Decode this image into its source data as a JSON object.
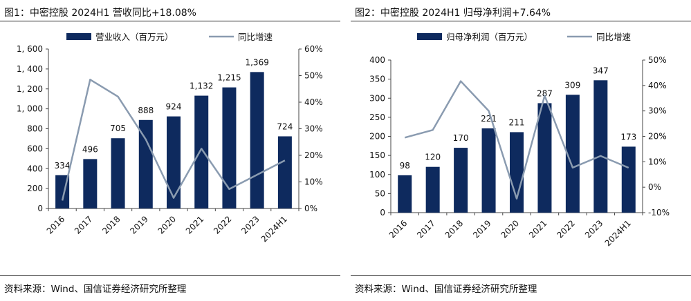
{
  "colors": {
    "bar": "#0e2a5e",
    "line": "#8a9bb0",
    "rule": "#222222",
    "axis": "#444444"
  },
  "panels": [
    {
      "title": "图1：中密控股 2024H1 营收同比+18.08%",
      "source": "资料来源：Wind、国信证券经济研究所整理"
    },
    {
      "title": "图2：中密控股 2024H1 归母净利润+7.64%",
      "source": "资料来源：Wind、国信证券经济研究所整理"
    }
  ],
  "chart_data": [
    {
      "type": "bar",
      "categories": [
        "2016",
        "2017",
        "2018",
        "2019",
        "2020",
        "2021",
        "2022",
        "2023",
        "2024H1"
      ],
      "series": [
        {
          "name": "营业收入（百万元）",
          "type": "bar",
          "axis": "left",
          "values": [
            334,
            496,
            705,
            888,
            924,
            1132,
            1215,
            1369,
            724
          ],
          "labels": [
            "334",
            "496",
            "705",
            "888",
            "924",
            "1,132",
            "1,215",
            "1,369",
            "724"
          ]
        },
        {
          "name": "同比增速",
          "type": "line",
          "axis": "right",
          "values": [
            3.0,
            48.5,
            42.1,
            26.0,
            4.0,
            22.5,
            7.3,
            12.7,
            18.08
          ]
        }
      ],
      "y_left": {
        "range": [
          0,
          1600
        ],
        "ticks": [
          0,
          200,
          400,
          600,
          800,
          1000,
          1200,
          1400,
          1600
        ],
        "tick_labels": [
          "0",
          "200",
          "400",
          "600",
          "800",
          "1, 000",
          "1, 200",
          "1, 400",
          "1, 600"
        ]
      },
      "y_right": {
        "range": [
          0,
          60
        ],
        "ticks": [
          0,
          10,
          20,
          30,
          40,
          50,
          60
        ],
        "tick_labels": [
          "0%",
          "10%",
          "20%",
          "30%",
          "40%",
          "50%",
          "60%"
        ]
      },
      "legend_placement": "top",
      "grid": false
    },
    {
      "type": "bar",
      "categories": [
        "2016",
        "2017",
        "2018",
        "2019",
        "2020",
        "2021",
        "2022",
        "2023",
        "2024H1"
      ],
      "series": [
        {
          "name": "归母净利润（百万元）",
          "type": "bar",
          "axis": "left",
          "values": [
            98,
            120,
            170,
            221,
            211,
            287,
            309,
            347,
            173
          ],
          "labels": [
            "98",
            "120",
            "170",
            "221",
            "211",
            "287",
            "309",
            "347",
            "173"
          ]
        },
        {
          "name": "同比增速",
          "type": "line",
          "axis": "right",
          "values": [
            19.5,
            22.5,
            41.7,
            30.0,
            -4.5,
            36.0,
            7.7,
            12.3,
            7.64
          ]
        }
      ],
      "y_left": {
        "range": [
          0,
          400
        ],
        "ticks": [
          0,
          50,
          100,
          150,
          200,
          250,
          300,
          350,
          400
        ],
        "tick_labels": [
          "0",
          "50",
          "100",
          "150",
          "200",
          "250",
          "300",
          "350",
          "400"
        ]
      },
      "y_right": {
        "range": [
          -10,
          50
        ],
        "ticks": [
          -10,
          0,
          10,
          20,
          30,
          40,
          50
        ],
        "tick_labels": [
          "-10%",
          "0%",
          "10%",
          "20%",
          "30%",
          "40%",
          "50%"
        ]
      },
      "legend_placement": "top",
      "grid": false
    }
  ]
}
